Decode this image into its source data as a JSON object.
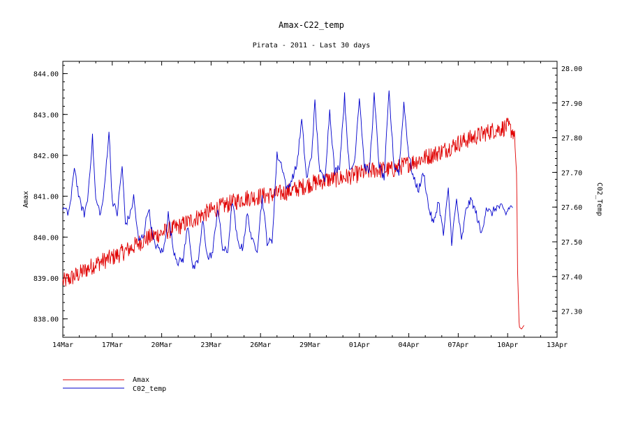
{
  "chart_data": {
    "type": "line",
    "title": "Amax-C22_temp",
    "subtitle": "Pirata - 2011 - Last 30 days",
    "xlabel": "",
    "ylabel_left": "Amax",
    "ylabel_right": "C02_Temp",
    "x_ticks": [
      "14Mar",
      "17Mar",
      "20Mar",
      "23Mar",
      "26Mar",
      "29Mar",
      "01Apr",
      "04Apr",
      "07Apr",
      "10Apr",
      "13Apr"
    ],
    "x_range_days": [
      0,
      30
    ],
    "ylim_left": [
      837.55,
      844.3
    ],
    "ylim_right": [
      27.225,
      28.02
    ],
    "y_ticks_left": [
      "838.00",
      "839.00",
      "840.00",
      "841.00",
      "842.00",
      "843.00",
      "844.00"
    ],
    "y_ticks_right": [
      "27.30",
      "27.40",
      "27.50",
      "27.60",
      "27.70",
      "27.80",
      "27.90",
      "28.00"
    ],
    "series": [
      {
        "name": "Amax",
        "axis": "left",
        "color": "#e00000",
        "x": [
          0,
          1,
          2,
          3,
          4,
          5,
          6,
          7,
          8,
          9,
          10,
          11,
          12,
          13,
          14,
          15,
          16,
          17,
          18,
          19,
          20,
          21,
          22,
          23,
          24,
          25,
          26,
          27,
          27.4,
          27.55,
          27.6,
          27.7,
          27.85,
          28.0
        ],
        "values": [
          838.9,
          839.1,
          839.35,
          839.5,
          839.7,
          839.95,
          840.1,
          840.25,
          840.45,
          840.65,
          840.8,
          840.95,
          841.0,
          841.05,
          841.15,
          841.3,
          841.4,
          841.45,
          841.55,
          841.65,
          841.65,
          841.8,
          841.95,
          842.1,
          842.3,
          842.45,
          842.6,
          842.7,
          842.55,
          841.5,
          839.2,
          837.8,
          837.75,
          837.85
        ]
      },
      {
        "name": "C02_temp",
        "axis": "right",
        "color": "#0000cc",
        "x": [
          0,
          0.3,
          0.5,
          0.7,
          1.0,
          1.3,
          1.5,
          1.8,
          2.0,
          2.3,
          2.5,
          2.8,
          3.0,
          3.3,
          3.6,
          3.8,
          4.1,
          4.3,
          4.6,
          4.9,
          5.2,
          5.5,
          5.8,
          6.1,
          6.4,
          6.7,
          7.0,
          7.3,
          7.6,
          7.9,
          8.2,
          8.5,
          8.8,
          9.1,
          9.4,
          9.7,
          10.0,
          10.3,
          10.6,
          10.9,
          11.2,
          11.5,
          11.8,
          12.1,
          12.4,
          12.7,
          13.0,
          13.3,
          13.6,
          13.9,
          14.2,
          14.5,
          14.8,
          15.1,
          15.3,
          15.6,
          15.9,
          16.2,
          16.5,
          16.8,
          17.1,
          17.4,
          17.7,
          18.0,
          18.3,
          18.6,
          18.9,
          19.2,
          19.5,
          19.8,
          20.1,
          20.4,
          20.7,
          21.0,
          21.3,
          21.6,
          21.9,
          22.2,
          22.5,
          22.8,
          23.1,
          23.4,
          23.6,
          23.9,
          24.2,
          24.5,
          24.8,
          25.1,
          25.4,
          25.7,
          26.0,
          26.3,
          26.6,
          26.9,
          27.1,
          27.3
        ],
        "values": [
          27.6,
          27.58,
          27.62,
          27.72,
          27.62,
          27.58,
          27.62,
          27.8,
          27.62,
          27.58,
          27.64,
          27.82,
          27.62,
          27.58,
          27.72,
          27.55,
          27.58,
          27.63,
          27.5,
          27.52,
          27.6,
          27.5,
          27.48,
          27.47,
          27.58,
          27.48,
          27.44,
          27.45,
          27.55,
          27.42,
          27.44,
          27.56,
          27.45,
          27.47,
          27.6,
          27.48,
          27.47,
          27.62,
          27.5,
          27.48,
          27.58,
          27.5,
          27.48,
          27.63,
          27.5,
          27.5,
          27.75,
          27.72,
          27.65,
          27.68,
          27.72,
          27.85,
          27.68,
          27.75,
          27.9,
          27.7,
          27.68,
          27.88,
          27.7,
          27.72,
          27.92,
          27.7,
          27.73,
          27.92,
          27.72,
          27.7,
          27.92,
          27.72,
          27.68,
          27.93,
          27.72,
          27.7,
          27.9,
          27.75,
          27.68,
          27.65,
          27.7,
          27.6,
          27.55,
          27.62,
          27.52,
          27.65,
          27.5,
          27.62,
          27.5,
          27.6,
          27.62,
          27.58,
          27.52,
          27.6,
          27.58,
          27.6,
          27.6,
          27.58,
          27.6,
          27.6
        ]
      }
    ]
  },
  "legend": [
    {
      "name": "Amax",
      "color": "#e00000"
    },
    {
      "name": "C02_temp",
      "color": "#0000cc"
    }
  ]
}
